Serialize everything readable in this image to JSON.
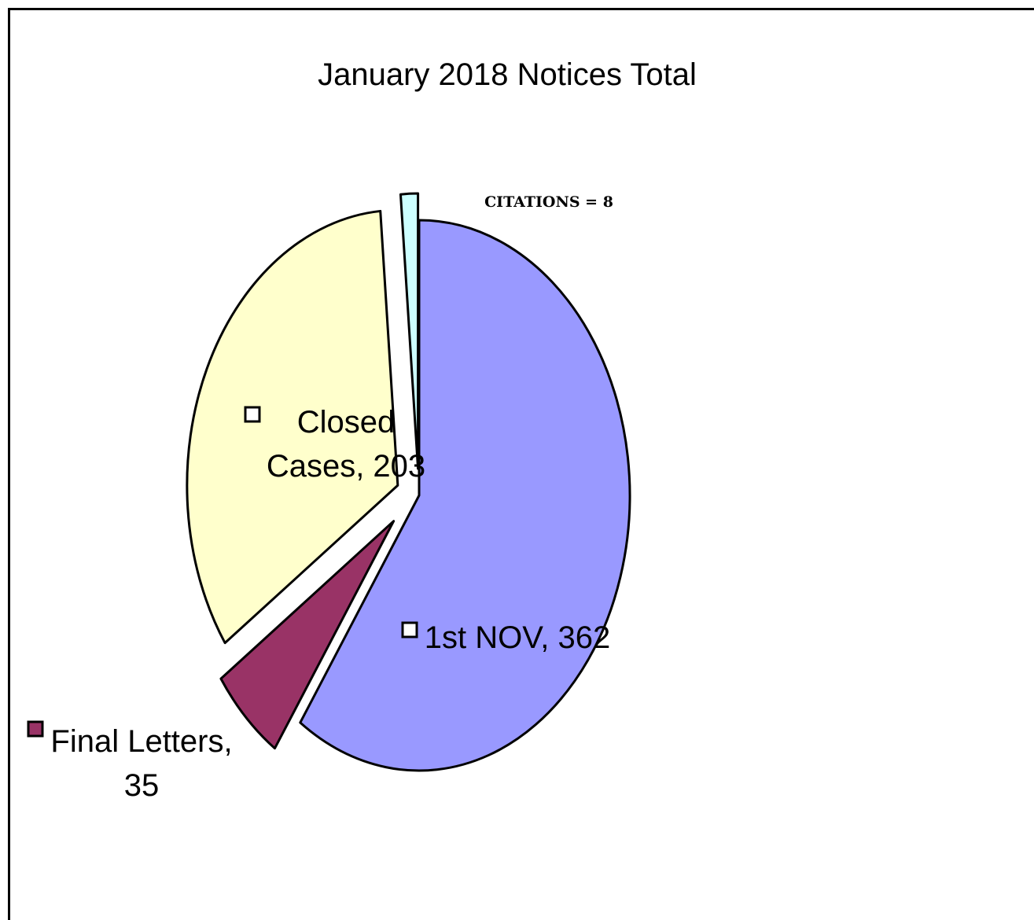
{
  "chart_data": {
    "type": "pie",
    "title": "January 2018 Notices Total",
    "slices": [
      {
        "name": "1st NOV",
        "value": 362,
        "color": "#9999ff",
        "exploded": false,
        "label_lines": [
          "1st NOV, 362"
        ],
        "marker_color": "#ffffff"
      },
      {
        "name": "Final Letters",
        "value": 35,
        "color": "#993366",
        "exploded": true,
        "label_lines": [
          "Final Letters,",
          "35"
        ],
        "marker_color": "#993366"
      },
      {
        "name": "Closed Cases",
        "value": 203,
        "color": "#ffffcc",
        "exploded": true,
        "label_lines": [
          "Closed",
          "Cases, 203"
        ],
        "marker_color": "#ffffff"
      },
      {
        "name": "CITATIONS",
        "value": 8,
        "color": "#ccffff",
        "exploded": true,
        "label_lines": [
          "CITATIONS = 8"
        ],
        "marker_color": null
      }
    ]
  }
}
